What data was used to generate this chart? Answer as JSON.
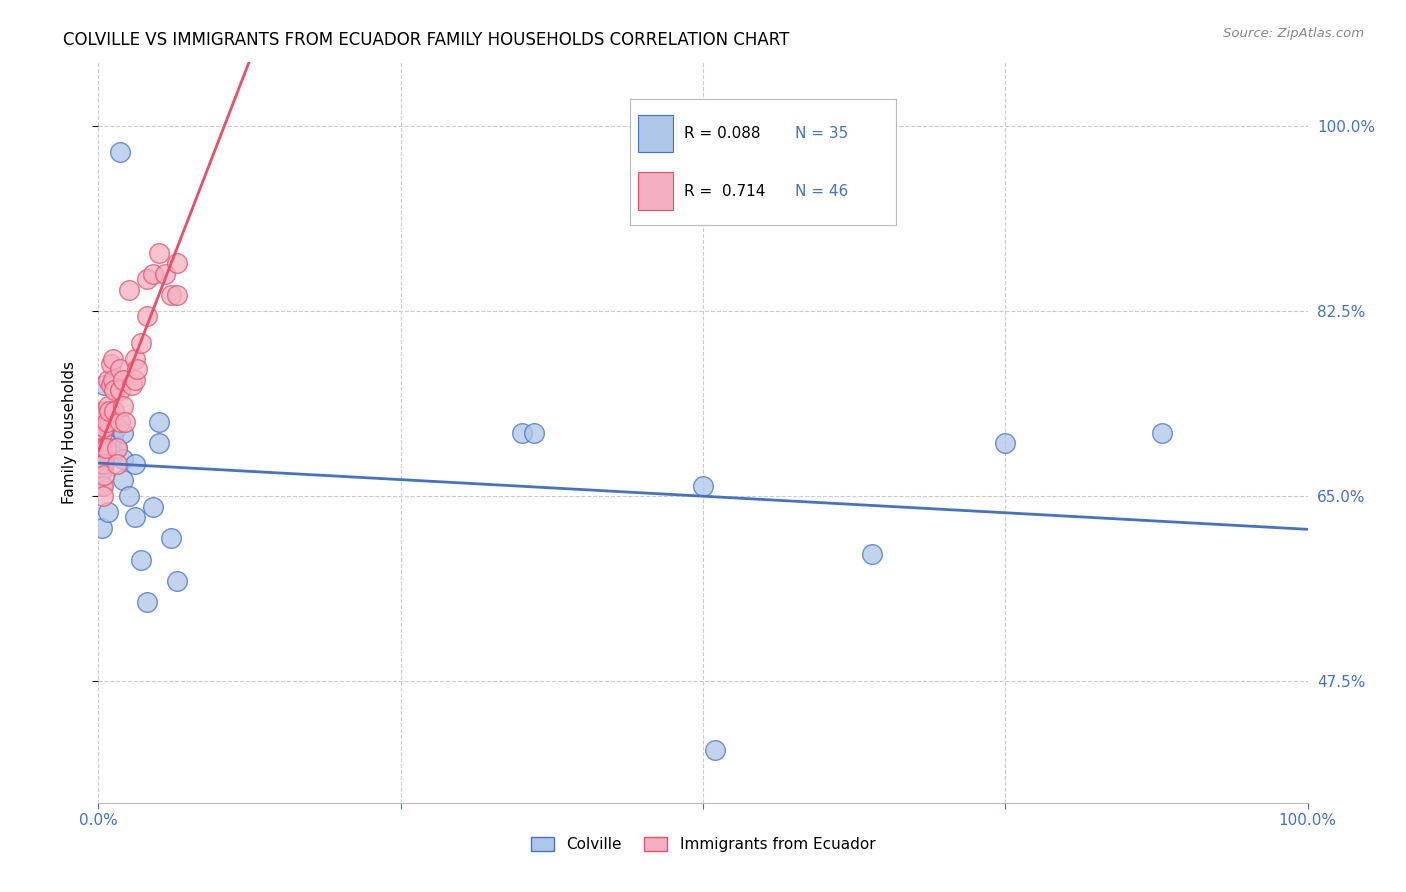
{
  "title": "COLVILLE VS IMMIGRANTS FROM ECUADOR FAMILY HOUSEHOLDS CORRELATION CHART",
  "source": "Source: ZipAtlas.com",
  "ylabel": "Family Households",
  "xlim": [
    0,
    100
  ],
  "ylim": [
    36,
    106
  ],
  "yticks": [
    47.5,
    65.0,
    82.5,
    100.0
  ],
  "ytick_labels": [
    "47.5%",
    "65.0%",
    "82.5%",
    "100.0%"
  ],
  "xticks": [
    0,
    25,
    50,
    75,
    100
  ],
  "xtick_labels": [
    "0.0%",
    "",
    "",
    "",
    "100.0%"
  ],
  "legend_r_colville": "0.088",
  "legend_n_colville": "35",
  "legend_r_ecuador": "0.714",
  "legend_n_ecuador": "46",
  "colville_color": "#aec6e8",
  "ecuador_color": "#f4afc0",
  "colville_line_color": "#4472c4",
  "ecuador_line_color": "#e8506a",
  "colville_points": [
    [
      1.8,
      97.5
    ],
    [
      0.5,
      75.5
    ],
    [
      0.5,
      72.5
    ],
    [
      0.5,
      70.5
    ],
    [
      0.3,
      71.5
    ],
    [
      0.3,
      70.0
    ],
    [
      0.3,
      69.0
    ],
    [
      0.3,
      67.5
    ],
    [
      0.3,
      66.0
    ],
    [
      0.3,
      62.0
    ],
    [
      0.8,
      63.5
    ],
    [
      1.2,
      70.5
    ],
    [
      1.2,
      69.0
    ],
    [
      1.5,
      71.5
    ],
    [
      1.5,
      69.5
    ],
    [
      2.0,
      71.0
    ],
    [
      2.0,
      68.5
    ],
    [
      2.0,
      66.5
    ],
    [
      2.5,
      65.0
    ],
    [
      3.0,
      68.0
    ],
    [
      3.0,
      63.0
    ],
    [
      3.5,
      59.0
    ],
    [
      4.0,
      55.0
    ],
    [
      4.5,
      64.0
    ],
    [
      5.0,
      72.0
    ],
    [
      5.0,
      70.0
    ],
    [
      6.0,
      61.0
    ],
    [
      6.5,
      57.0
    ],
    [
      35.0,
      71.0
    ],
    [
      36.0,
      71.0
    ],
    [
      50.0,
      66.0
    ],
    [
      51.0,
      41.0
    ],
    [
      64.0,
      59.5
    ],
    [
      75.0,
      70.0
    ],
    [
      88.0,
      71.0
    ]
  ],
  "ecuador_points": [
    [
      0.2,
      69.5
    ],
    [
      0.2,
      68.0
    ],
    [
      0.3,
      72.0
    ],
    [
      0.3,
      71.0
    ],
    [
      0.3,
      69.5
    ],
    [
      0.4,
      68.0
    ],
    [
      0.4,
      66.0
    ],
    [
      0.4,
      65.0
    ],
    [
      0.5,
      73.0
    ],
    [
      0.5,
      71.5
    ],
    [
      0.5,
      69.5
    ],
    [
      0.5,
      68.0
    ],
    [
      0.5,
      67.0
    ],
    [
      0.6,
      69.5
    ],
    [
      0.7,
      72.0
    ],
    [
      0.8,
      76.0
    ],
    [
      0.8,
      73.5
    ],
    [
      0.9,
      73.0
    ],
    [
      1.0,
      77.5
    ],
    [
      1.0,
      75.5
    ],
    [
      1.2,
      78.0
    ],
    [
      1.2,
      76.0
    ],
    [
      1.3,
      75.0
    ],
    [
      1.3,
      73.0
    ],
    [
      1.5,
      69.5
    ],
    [
      1.5,
      68.0
    ],
    [
      1.8,
      77.0
    ],
    [
      1.8,
      75.0
    ],
    [
      1.8,
      72.0
    ],
    [
      2.0,
      76.0
    ],
    [
      2.0,
      73.5
    ],
    [
      2.2,
      72.0
    ],
    [
      2.5,
      84.5
    ],
    [
      2.8,
      75.5
    ],
    [
      3.0,
      78.0
    ],
    [
      3.0,
      76.0
    ],
    [
      3.2,
      77.0
    ],
    [
      3.5,
      79.5
    ],
    [
      4.0,
      85.5
    ],
    [
      4.0,
      82.0
    ],
    [
      4.5,
      86.0
    ],
    [
      5.0,
      88.0
    ],
    [
      5.5,
      86.0
    ],
    [
      6.0,
      84.0
    ],
    [
      6.5,
      87.0
    ],
    [
      6.5,
      84.0
    ]
  ],
  "background_color": "#ffffff",
  "grid_color": "#cccccc"
}
